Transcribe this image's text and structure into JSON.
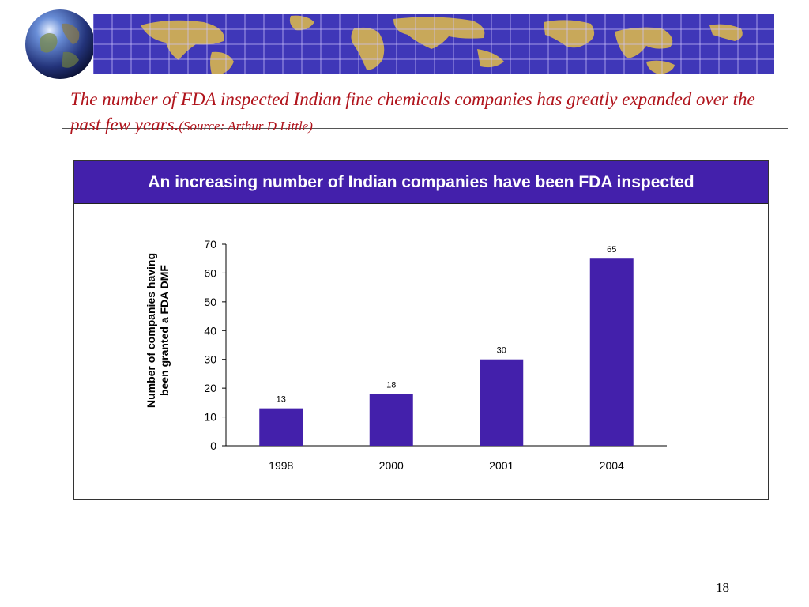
{
  "headline": {
    "text": "The number of FDA inspected Indian fine chemicals companies has greatly expanded over the past few years.",
    "source": "(Source: Arthur D Little)"
  },
  "slide_number": "18",
  "colors": {
    "bar": "#4320ab",
    "header_bg": "#4320ab",
    "headline_text": "#b0141c",
    "banner_bg": "#3f37b8",
    "land": "#c8a85a"
  },
  "chart_data": {
    "type": "bar",
    "title": "An increasing number of Indian companies have been FDA inspected",
    "ylabel": "Number of companies having been granted a FDA DMF",
    "ylabel_lines": [
      "Number of companies having",
      "been granted a FDA DMF"
    ],
    "xlabel": "",
    "categories": [
      "1998",
      "2000",
      "2001",
      "2004"
    ],
    "values": [
      13,
      18,
      30,
      65
    ],
    "ylim": [
      0,
      70
    ],
    "yticks": [
      0,
      10,
      20,
      30,
      40,
      50,
      60,
      70
    ],
    "grid": false,
    "legend": "none",
    "data_labels": true
  }
}
